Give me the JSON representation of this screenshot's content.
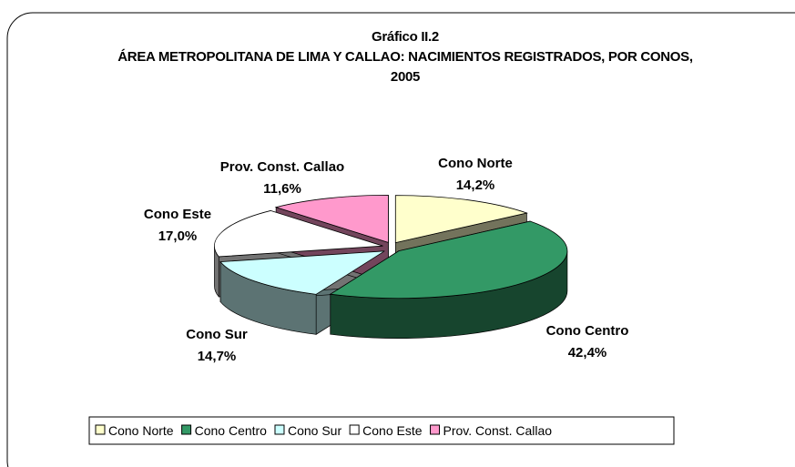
{
  "chart_data": {
    "type": "pie",
    "title": "Gráfico II.2",
    "subtitle": "ÁREA METROPOLITANA DE LIMA Y CALLAO: NACIMIENTOS REGISTRADOS, POR CONOS, 2005",
    "categories": [
      "Cono Norte",
      "Cono Centro",
      "Cono Sur",
      "Cono Este",
      "Prov. Const. Callao"
    ],
    "values": [
      14.2,
      42.4,
      14.7,
      17.0,
      11.6
    ],
    "value_labels": [
      "14,2%",
      "42,4%",
      "14,7%",
      "17,0%",
      "11,6%"
    ],
    "colors": [
      "#ffffcc",
      "#339966",
      "#ccffff",
      "#ffffff",
      "#ff99cc"
    ],
    "legend": "bottom"
  }
}
